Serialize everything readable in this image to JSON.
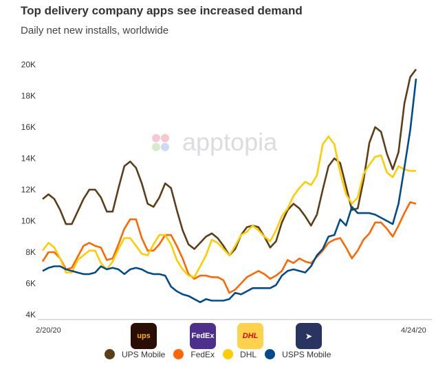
{
  "chart_data": {
    "type": "line",
    "title": "Top delivery company apps see increased demand",
    "subtitle": "Daily net new installs, worldwide",
    "x_start": "2/20/20",
    "x_end": "4/24/20",
    "x_tick_labels": [
      "2/20/20",
      "4/24/20"
    ],
    "y_tick_labels": [
      "4K",
      "6K",
      "8K",
      "10K",
      "12K",
      "14K",
      "16K",
      "18K",
      "20K"
    ],
    "ylim": [
      4000,
      20000
    ],
    "grid": false,
    "legend_position": "bottom",
    "watermark": "apptopia",
    "series": [
      {
        "name": "UPS Mobile",
        "color": "#5c3d17",
        "values": [
          11400,
          11700,
          11400,
          10700,
          9800,
          9800,
          10600,
          11400,
          12000,
          12000,
          11500,
          10600,
          10600,
          12100,
          13500,
          13800,
          13400,
          12400,
          11100,
          10900,
          11500,
          12400,
          12100,
          10700,
          9400,
          8500,
          8200,
          8600,
          9000,
          9200,
          8900,
          8400,
          7800,
          8200,
          9100,
          9600,
          9700,
          9600,
          9000,
          8300,
          8700,
          9900,
          10700,
          11100,
          10800,
          10300,
          9700,
          10400,
          12000,
          13500,
          14000,
          13700,
          12200,
          10700,
          10800,
          12600,
          15000,
          16000,
          15700,
          14300,
          13300,
          14400,
          17500,
          19200,
          19700
        ]
      },
      {
        "name": "FedEx",
        "color": "#ff6600",
        "values": [
          7400,
          8000,
          8000,
          7600,
          6900,
          7000,
          7700,
          8400,
          8600,
          8400,
          8300,
          7500,
          7600,
          8500,
          9500,
          10100,
          10100,
          8900,
          8100,
          8100,
          8500,
          9100,
          9100,
          8400,
          7600,
          6600,
          6300,
          6500,
          6500,
          6400,
          6400,
          6200,
          5400,
          5600,
          6000,
          6400,
          6600,
          6800,
          6600,
          6300,
          6500,
          6800,
          7500,
          7300,
          7600,
          7400,
          7300,
          7700,
          8100,
          8600,
          8800,
          8900,
          8300,
          7600,
          8100,
          8800,
          9200,
          9900,
          9900,
          9500,
          9000,
          9700,
          10500,
          11200,
          11100
        ]
      },
      {
        "name": "DHL",
        "color": "#ffcc00",
        "values": [
          8100,
          8600,
          8300,
          7600,
          6700,
          6700,
          7500,
          7800,
          8100,
          8100,
          7300,
          6900,
          7400,
          8200,
          8900,
          8900,
          8400,
          7900,
          7800,
          8500,
          9100,
          9100,
          8500,
          7500,
          6900,
          6500,
          6400,
          7100,
          7800,
          8800,
          8600,
          8200,
          7800,
          8400,
          9100,
          9300,
          9700,
          9400,
          9000,
          8700,
          9400,
          10300,
          10800,
          11600,
          12100,
          12500,
          12300,
          12900,
          14900,
          15400,
          14900,
          13100,
          11700,
          11100,
          11500,
          13000,
          13600,
          14100,
          14200,
          13100,
          12800,
          13500,
          13300,
          13200,
          13200
        ]
      },
      {
        "name": "USPS Mobile",
        "color": "#004b8d",
        "values": [
          6800,
          7000,
          7100,
          7100,
          6900,
          6800,
          6700,
          6600,
          6600,
          6700,
          7100,
          6900,
          7000,
          6900,
          6600,
          6900,
          7000,
          6900,
          6700,
          6600,
          6600,
          6500,
          5800,
          5500,
          5300,
          5200,
          5000,
          4800,
          5000,
          4900,
          4900,
          4900,
          5000,
          5400,
          5300,
          5500,
          5700,
          5700,
          5700,
          5700,
          5900,
          6500,
          6800,
          6900,
          6800,
          6700,
          7100,
          7800,
          8200,
          9000,
          9100,
          10100,
          9700,
          10900,
          10500,
          10500,
          10500,
          10400,
          10200,
          10000,
          9800,
          11100,
          13400,
          15800,
          19100
        ]
      }
    ]
  },
  "app_icons": [
    {
      "name": "ups",
      "label": "ups"
    },
    {
      "name": "fedex",
      "label": "FedEx"
    },
    {
      "name": "dhl",
      "label": "DHL"
    },
    {
      "name": "usps",
      "label": ""
    }
  ]
}
